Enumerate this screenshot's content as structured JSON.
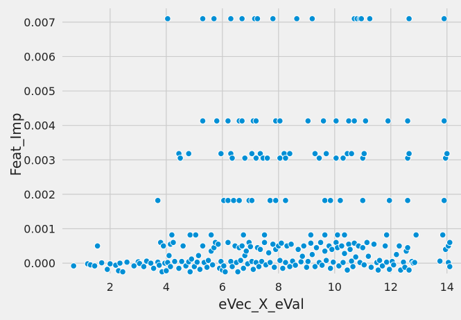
{
  "chart_data": {
    "type": "scatter",
    "xlabel": "eVec_X_eVal",
    "ylabel": "Feat_Imp",
    "xlim": [
      0.3,
      14.5
    ],
    "ylim": [
      -0.0003,
      0.0074
    ],
    "xticks": [
      2,
      4,
      6,
      8,
      10,
      12,
      14
    ],
    "xtick_labels": [
      "2",
      "4",
      "6",
      "8",
      "10",
      "12",
      "14"
    ],
    "yticks": [
      0.0,
      0.001,
      0.002,
      0.003,
      0.004,
      0.005,
      0.006,
      0.007
    ],
    "ytick_labels": [
      "0.000",
      "0.001",
      "0.002",
      "0.003",
      "0.004",
      "0.005",
      "0.006",
      "0.007"
    ],
    "grid": true,
    "marker_color": "#008fd5",
    "marker_edge_color": "#ffffff",
    "background_color": "#f0f0f0",
    "grid_color": "#cbcbcb",
    "points": [
      {
        "x": 4.05,
        "y": 0.0071
      },
      {
        "x": 5.3,
        "y": 0.0071
      },
      {
        "x": 5.7,
        "y": 0.0071
      },
      {
        "x": 6.3,
        "y": 0.0071
      },
      {
        "x": 6.7,
        "y": 0.0071
      },
      {
        "x": 7.15,
        "y": 0.0071
      },
      {
        "x": 7.25,
        "y": 0.0071
      },
      {
        "x": 7.8,
        "y": 0.0071
      },
      {
        "x": 8.65,
        "y": 0.0071
      },
      {
        "x": 9.2,
        "y": 0.0071
      },
      {
        "x": 10.7,
        "y": 0.0071
      },
      {
        "x": 10.8,
        "y": 0.0071
      },
      {
        "x": 10.9,
        "y": 0.0071
      },
      {
        "x": 10.95,
        "y": 0.0071
      },
      {
        "x": 11.25,
        "y": 0.0071
      },
      {
        "x": 12.65,
        "y": 0.0071
      },
      {
        "x": 13.9,
        "y": 0.0071
      },
      {
        "x": 5.3,
        "y": 0.00413
      },
      {
        "x": 5.8,
        "y": 0.00413
      },
      {
        "x": 6.2,
        "y": 0.00413
      },
      {
        "x": 6.6,
        "y": 0.00413
      },
      {
        "x": 6.7,
        "y": 0.00413
      },
      {
        "x": 7.1,
        "y": 0.00413
      },
      {
        "x": 7.2,
        "y": 0.00413
      },
      {
        "x": 7.9,
        "y": 0.00413
      },
      {
        "x": 8.05,
        "y": 0.00413
      },
      {
        "x": 9.05,
        "y": 0.00413
      },
      {
        "x": 9.6,
        "y": 0.00413
      },
      {
        "x": 10.05,
        "y": 0.00413
      },
      {
        "x": 10.5,
        "y": 0.00413
      },
      {
        "x": 10.7,
        "y": 0.00413
      },
      {
        "x": 11.1,
        "y": 0.00413
      },
      {
        "x": 11.9,
        "y": 0.00413
      },
      {
        "x": 12.6,
        "y": 0.00413
      },
      {
        "x": 13.9,
        "y": 0.00413
      },
      {
        "x": 4.45,
        "y": 0.00318
      },
      {
        "x": 4.5,
        "y": 0.00305
      },
      {
        "x": 4.8,
        "y": 0.00318
      },
      {
        "x": 5.95,
        "y": 0.00318
      },
      {
        "x": 6.3,
        "y": 0.00318
      },
      {
        "x": 6.35,
        "y": 0.00305
      },
      {
        "x": 6.8,
        "y": 0.00305
      },
      {
        "x": 7.05,
        "y": 0.00318
      },
      {
        "x": 7.2,
        "y": 0.00305
      },
      {
        "x": 7.35,
        "y": 0.00318
      },
      {
        "x": 7.45,
        "y": 0.00305
      },
      {
        "x": 7.6,
        "y": 0.00305
      },
      {
        "x": 8.05,
        "y": 0.00305
      },
      {
        "x": 8.2,
        "y": 0.00318
      },
      {
        "x": 8.25,
        "y": 0.00305
      },
      {
        "x": 8.4,
        "y": 0.00318
      },
      {
        "x": 9.3,
        "y": 0.00318
      },
      {
        "x": 9.45,
        "y": 0.00305
      },
      {
        "x": 9.7,
        "y": 0.00318
      },
      {
        "x": 10.05,
        "y": 0.00305
      },
      {
        "x": 10.3,
        "y": 0.00305
      },
      {
        "x": 10.45,
        "y": 0.00318
      },
      {
        "x": 10.6,
        "y": 0.00318
      },
      {
        "x": 11.0,
        "y": 0.00305
      },
      {
        "x": 11.05,
        "y": 0.00318
      },
      {
        "x": 12.6,
        "y": 0.00305
      },
      {
        "x": 12.65,
        "y": 0.00318
      },
      {
        "x": 13.95,
        "y": 0.00305
      },
      {
        "x": 14.0,
        "y": 0.00318
      },
      {
        "x": 3.7,
        "y": 0.00182
      },
      {
        "x": 6.05,
        "y": 0.00182
      },
      {
        "x": 6.2,
        "y": 0.00182
      },
      {
        "x": 6.4,
        "y": 0.00182
      },
      {
        "x": 6.6,
        "y": 0.00182
      },
      {
        "x": 6.95,
        "y": 0.00182
      },
      {
        "x": 7.05,
        "y": 0.00182
      },
      {
        "x": 7.7,
        "y": 0.00182
      },
      {
        "x": 7.9,
        "y": 0.00182
      },
      {
        "x": 8.25,
        "y": 0.00182
      },
      {
        "x": 9.65,
        "y": 0.00182
      },
      {
        "x": 9.85,
        "y": 0.00182
      },
      {
        "x": 10.2,
        "y": 0.00182
      },
      {
        "x": 11.0,
        "y": 0.00182
      },
      {
        "x": 11.95,
        "y": 0.00182
      },
      {
        "x": 12.6,
        "y": 0.00182
      },
      {
        "x": 13.9,
        "y": 0.00182
      },
      {
        "x": 4.2,
        "y": 0.00082
      },
      {
        "x": 4.85,
        "y": 0.00082
      },
      {
        "x": 5.05,
        "y": 0.00082
      },
      {
        "x": 5.6,
        "y": 0.00082
      },
      {
        "x": 6.75,
        "y": 0.00082
      },
      {
        "x": 7.5,
        "y": 0.00082
      },
      {
        "x": 9.15,
        "y": 0.00082
      },
      {
        "x": 9.65,
        "y": 0.00082
      },
      {
        "x": 10.1,
        "y": 0.00082
      },
      {
        "x": 10.35,
        "y": 0.00082
      },
      {
        "x": 11.85,
        "y": 0.00082
      },
      {
        "x": 12.9,
        "y": 0.00082
      },
      {
        "x": 13.85,
        "y": 0.00082
      },
      {
        "x": 0.7,
        "y": -8e-05
      },
      {
        "x": 1.2,
        "y": -2e-05
      },
      {
        "x": 1.3,
        "y": -5e-05
      },
      {
        "x": 1.45,
        "y": -8e-05
      },
      {
        "x": 1.55,
        "y": 0.0005
      },
      {
        "x": 1.7,
        "y": 1e-05
      },
      {
        "x": 1.9,
        "y": -0.00018
      },
      {
        "x": 2.0,
        "y": -2e-05
      },
      {
        "x": 2.2,
        "y": -6e-05
      },
      {
        "x": 2.3,
        "y": -0.00022
      },
      {
        "x": 2.35,
        "y": 0.0
      },
      {
        "x": 2.45,
        "y": -0.00025
      },
      {
        "x": 2.6,
        "y": 3e-05
      },
      {
        "x": 2.85,
        "y": -8e-05
      },
      {
        "x": 3.0,
        "y": 4e-05
      },
      {
        "x": 3.05,
        "y": -1e-05
      },
      {
        "x": 3.2,
        "y": -0.0001
      },
      {
        "x": 3.3,
        "y": 6e-05
      },
      {
        "x": 3.45,
        "y": 0.0
      },
      {
        "x": 3.55,
        "y": -0.00015
      },
      {
        "x": 3.7,
        "y": 3e-05
      },
      {
        "x": 3.75,
        "y": -6e-05
      },
      {
        "x": 3.8,
        "y": 0.0006
      },
      {
        "x": 3.85,
        "y": -0.00025
      },
      {
        "x": 3.9,
        "y": 0.0005
      },
      {
        "x": 3.95,
        "y": 0.0
      },
      {
        "x": 4.0,
        "y": -0.00022
      },
      {
        "x": 4.05,
        "y": 2e-05
      },
      {
        "x": 4.1,
        "y": 0.00022
      },
      {
        "x": 4.15,
        "y": -0.0001
      },
      {
        "x": 4.15,
        "y": 0.00055
      },
      {
        "x": 4.25,
        "y": 0.0006
      },
      {
        "x": 4.3,
        "y": 5e-05
      },
      {
        "x": 4.45,
        "y": -0.00015
      },
      {
        "x": 4.55,
        "y": 5e-05
      },
      {
        "x": 4.6,
        "y": 0.0005
      },
      {
        "x": 4.7,
        "y": -8e-05
      },
      {
        "x": 4.8,
        "y": 4e-05
      },
      {
        "x": 4.85,
        "y": -0.00025
      },
      {
        "x": 4.9,
        "y": 0.00012
      },
      {
        "x": 5.0,
        "y": -0.0001
      },
      {
        "x": 5.1,
        "y": 3e-05
      },
      {
        "x": 5.15,
        "y": 0.00022
      },
      {
        "x": 5.2,
        "y": -0.00018
      },
      {
        "x": 5.3,
        "y": 0.0005
      },
      {
        "x": 5.35,
        "y": 2e-05
      },
      {
        "x": 5.45,
        "y": -0.00012
      },
      {
        "x": 5.5,
        "y": 8e-05
      },
      {
        "x": 5.6,
        "y": 0.00035
      },
      {
        "x": 5.65,
        "y": -5e-05
      },
      {
        "x": 5.7,
        "y": 0.00045
      },
      {
        "x": 5.75,
        "y": 0.0006
      },
      {
        "x": 5.85,
        "y": 0.00055
      },
      {
        "x": 5.9,
        "y": -0.00015
      },
      {
        "x": 5.95,
        "y": 5e-05
      },
      {
        "x": 6.0,
        "y": -0.0002
      },
      {
        "x": 6.05,
        "y": -8e-05
      },
      {
        "x": 6.1,
        "y": -0.00025
      },
      {
        "x": 6.2,
        "y": 0.0006
      },
      {
        "x": 6.3,
        "y": 5e-05
      },
      {
        "x": 6.35,
        "y": -0.0001
      },
      {
        "x": 6.45,
        "y": 0.0005
      },
      {
        "x": 6.5,
        "y": 2e-05
      },
      {
        "x": 6.55,
        "y": -0.00025
      },
      {
        "x": 6.6,
        "y": 0.00045
      },
      {
        "x": 6.65,
        "y": 8e-05
      },
      {
        "x": 6.7,
        "y": 0.0005
      },
      {
        "x": 6.75,
        "y": -0.00015
      },
      {
        "x": 6.8,
        "y": 0.00022
      },
      {
        "x": 6.85,
        "y": 0.00035
      },
      {
        "x": 6.9,
        "y": -2e-05
      },
      {
        "x": 6.95,
        "y": 0.0006
      },
      {
        "x": 7.0,
        "y": 0.00048
      },
      {
        "x": 7.05,
        "y": 5e-05
      },
      {
        "x": 7.1,
        "y": -0.00018
      },
      {
        "x": 7.2,
        "y": 2e-05
      },
      {
        "x": 7.25,
        "y": 0.00045
      },
      {
        "x": 7.3,
        "y": -0.0001
      },
      {
        "x": 7.35,
        "y": 0.0004
      },
      {
        "x": 7.4,
        "y": 5e-05
      },
      {
        "x": 7.5,
        "y": 0.0006
      },
      {
        "x": 7.55,
        "y": -5e-05
      },
      {
        "x": 7.65,
        "y": 0.0003
      },
      {
        "x": 7.7,
        "y": 2e-05
      },
      {
        "x": 7.8,
        "y": 0.00055
      },
      {
        "x": 7.85,
        "y": -0.00012
      },
      {
        "x": 7.9,
        "y": 0.0004
      },
      {
        "x": 8.0,
        "y": 0.0005
      },
      {
        "x": 8.05,
        "y": 8e-05
      },
      {
        "x": 8.1,
        "y": 0.00058
      },
      {
        "x": 8.15,
        "y": -0.00015
      },
      {
        "x": 8.25,
        "y": 2e-05
      },
      {
        "x": 8.3,
        "y": 0.0005
      },
      {
        "x": 8.4,
        "y": -0.0001
      },
      {
        "x": 8.45,
        "y": 0.00055
      },
      {
        "x": 8.5,
        "y": 6e-05
      },
      {
        "x": 8.6,
        "y": -6e-05
      },
      {
        "x": 8.7,
        "y": 0.0004
      },
      {
        "x": 8.8,
        "y": 4e-05
      },
      {
        "x": 8.85,
        "y": 0.0002
      },
      {
        "x": 8.9,
        "y": 0.0005
      },
      {
        "x": 9.0,
        "y": -0.00012
      },
      {
        "x": 9.05,
        "y": 5e-05
      },
      {
        "x": 9.15,
        "y": 0.00058
      },
      {
        "x": 9.2,
        "y": 0.00025
      },
      {
        "x": 9.3,
        "y": -0.0001
      },
      {
        "x": 9.35,
        "y": 0.00045
      },
      {
        "x": 9.45,
        "y": 2e-05
      },
      {
        "x": 9.5,
        "y": 0.0006
      },
      {
        "x": 9.55,
        "y": -6e-05
      },
      {
        "x": 9.65,
        "y": 0.00035
      },
      {
        "x": 9.7,
        "y": 8e-05
      },
      {
        "x": 9.8,
        "y": 0.0005
      },
      {
        "x": 9.85,
        "y": -0.00015
      },
      {
        "x": 9.9,
        "y": 0.0004
      },
      {
        "x": 9.95,
        "y": 3e-05
      },
      {
        "x": 10.05,
        "y": 0.0006
      },
      {
        "x": 10.1,
        "y": 0.00045
      },
      {
        "x": 10.15,
        "y": -8e-05
      },
      {
        "x": 10.25,
        "y": 0.0005
      },
      {
        "x": 10.3,
        "y": 2e-05
      },
      {
        "x": 10.35,
        "y": 0.00028
      },
      {
        "x": 10.45,
        "y": -0.0002
      },
      {
        "x": 10.5,
        "y": 0.00055
      },
      {
        "x": 10.55,
        "y": 0.0004
      },
      {
        "x": 10.6,
        "y": 6e-05
      },
      {
        "x": 10.65,
        "y": -0.0001
      },
      {
        "x": 10.7,
        "y": 0.00058
      },
      {
        "x": 10.75,
        "y": 0.00018
      },
      {
        "x": 10.85,
        "y": 0.0005
      },
      {
        "x": 10.9,
        "y": 2e-05
      },
      {
        "x": 11.0,
        "y": 0.00045
      },
      {
        "x": 11.05,
        "y": -5e-05
      },
      {
        "x": 11.15,
        "y": 0.0006
      },
      {
        "x": 11.2,
        "y": 0.0002
      },
      {
        "x": 11.3,
        "y": -0.00012
      },
      {
        "x": 11.4,
        "y": 0.00055
      },
      {
        "x": 11.5,
        "y": 2e-05
      },
      {
        "x": 11.55,
        "y": -0.0002
      },
      {
        "x": 11.6,
        "y": 8e-05
      },
      {
        "x": 11.7,
        "y": -8e-05
      },
      {
        "x": 11.8,
        "y": 0.0005
      },
      {
        "x": 11.85,
        "y": 3e-05
      },
      {
        "x": 11.95,
        "y": -0.00018
      },
      {
        "x": 12.05,
        "y": 5e-05
      },
      {
        "x": 12.1,
        "y": -5e-05
      },
      {
        "x": 12.2,
        "y": 0.00025
      },
      {
        "x": 12.3,
        "y": 0.0005
      },
      {
        "x": 12.35,
        "y": -0.0002
      },
      {
        "x": 12.45,
        "y": 3e-05
      },
      {
        "x": 12.5,
        "y": -0.00012
      },
      {
        "x": 12.55,
        "y": 0.00035
      },
      {
        "x": 12.6,
        "y": 0.00045
      },
      {
        "x": 12.65,
        "y": -0.0002
      },
      {
        "x": 12.75,
        "y": 5e-05
      },
      {
        "x": 12.8,
        "y": 0.0
      },
      {
        "x": 12.85,
        "y": 2e-05
      },
      {
        "x": 13.75,
        "y": 6e-05
      },
      {
        "x": 13.95,
        "y": 0.0004
      },
      {
        "x": 14.05,
        "y": 0.0005
      },
      {
        "x": 14.1,
        "y": 0.0006
      },
      {
        "x": 14.05,
        "y": 2e-05
      },
      {
        "x": 14.1,
        "y": -0.0001
      }
    ]
  }
}
